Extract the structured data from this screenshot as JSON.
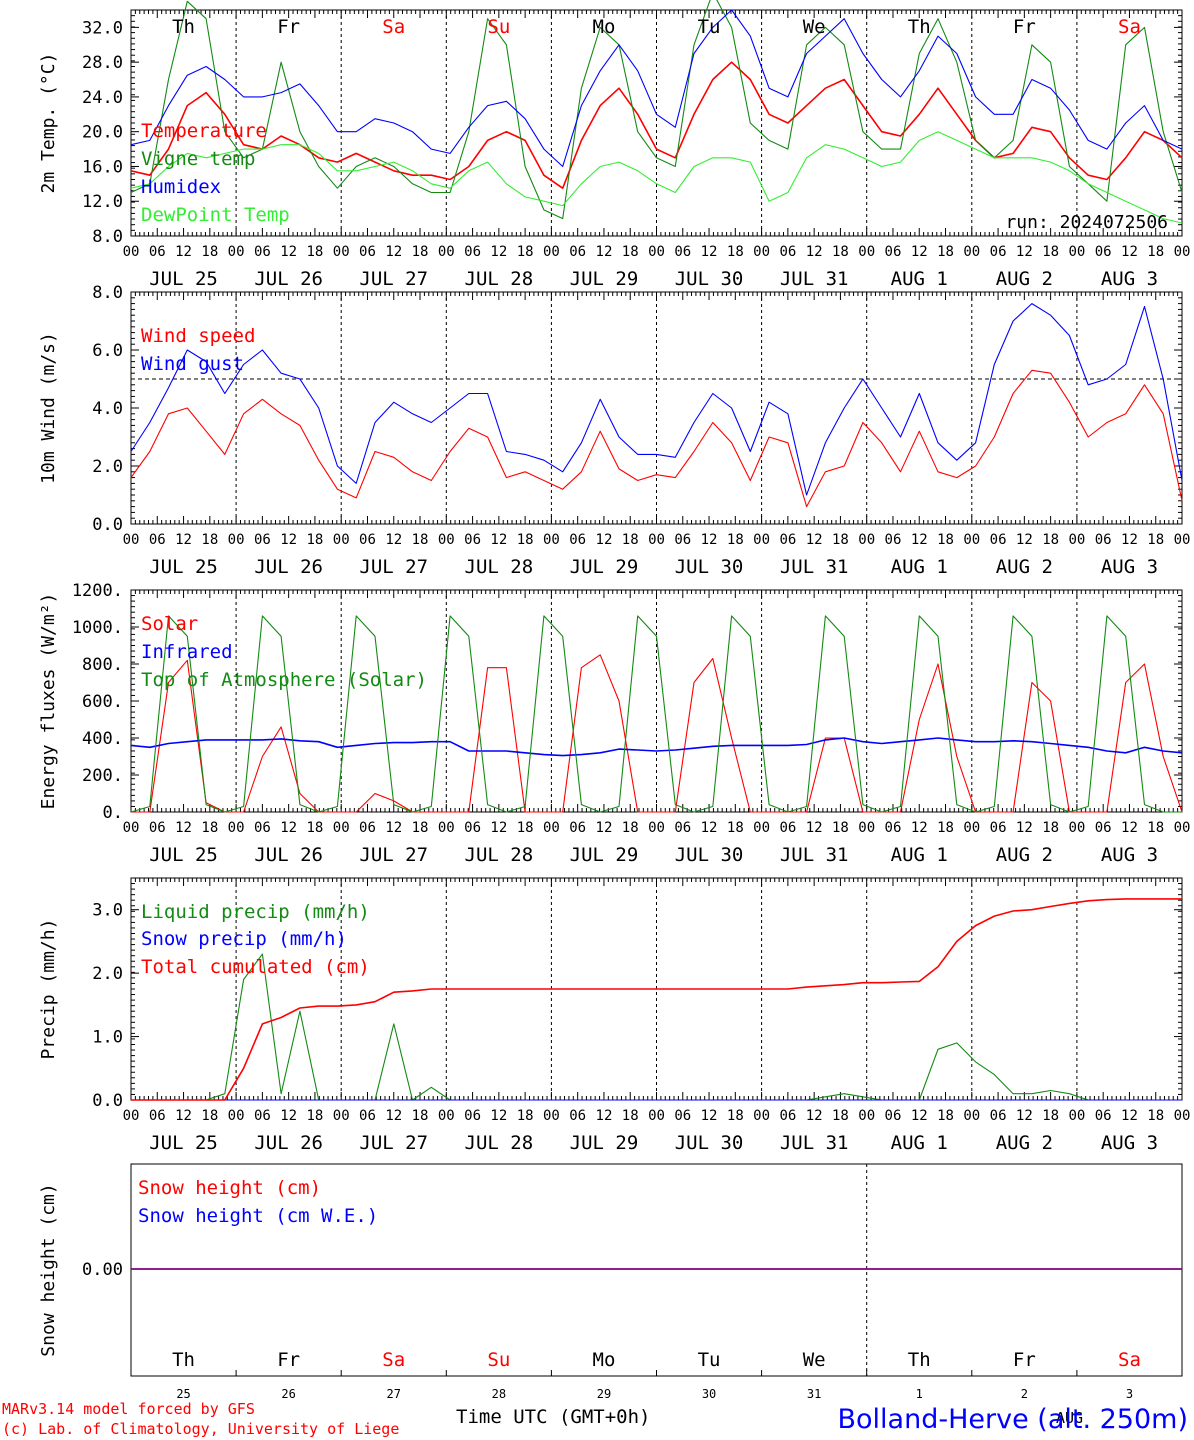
{
  "footer": {
    "model": "MARv3.14 model forced by GFS",
    "lab": "(c) Lab. of Climatology, University of Liege",
    "time_label": "Time UTC (GMT+0h)",
    "station": "Bolland-Herve (alt. 250m)",
    "month_overlay": "AUG"
  },
  "colors": {
    "red": "#ff0000",
    "green": "#138a13",
    "blue": "#0000ff",
    "lightgreen": "#33ee33",
    "purple": "#7f007f"
  },
  "days": {
    "weekday": [
      "Th",
      "Fr",
      "Sa",
      "Su",
      "Mo",
      "Tu",
      "We",
      "Th",
      "Fr",
      "Sa"
    ],
    "weekend": [
      false,
      false,
      true,
      true,
      false,
      false,
      false,
      false,
      false,
      true
    ],
    "date_labels": [
      "JUL 25",
      "JUL 26",
      "JUL 27",
      "JUL 28",
      "JUL 29",
      "JUL 30",
      "JUL 31",
      "AUG  1",
      "AUG  2",
      "AUG  3"
    ],
    "day_numbers": [
      "25",
      "26",
      "27",
      "28",
      "29",
      "30",
      "31",
      "1",
      "2",
      "3"
    ],
    "hour_ticks": [
      "00",
      "06",
      "12",
      "18"
    ],
    "final_tick": "00"
  },
  "chart_data": [
    {
      "type": "line",
      "ylabel": "2m Temp. (°C)",
      "ylim": [
        8,
        34
      ],
      "yticks": [
        "8.0",
        "12.0",
        "16.0",
        "20.0",
        "24.0",
        "28.0",
        "32.0"
      ],
      "annotation": "run: 2024072506",
      "x_hours_step": 6,
      "series": [
        {
          "name": "Temperature",
          "color": "red",
          "values": [
            15.5,
            15,
            18,
            23,
            24.5,
            22,
            18.5,
            18,
            19.5,
            18.5,
            17,
            16.5,
            17.5,
            16.5,
            15.5,
            15,
            15,
            14.5,
            16,
            19,
            20,
            19,
            15,
            13.5,
            19,
            23,
            25,
            22,
            18,
            17,
            22,
            26,
            28,
            26,
            22,
            21,
            23,
            25,
            26,
            23,
            20,
            19.5,
            22,
            25,
            22,
            19,
            17,
            17.5,
            20.5,
            20,
            17,
            15,
            14.5,
            17,
            20,
            19,
            17
          ]
        },
        {
          "name": "Vigne temp",
          "color": "green",
          "values": [
            13,
            14,
            26,
            35,
            33,
            20,
            17,
            18,
            28,
            20,
            16,
            13.5,
            16,
            17,
            16,
            14,
            13,
            13,
            20,
            33,
            30,
            16,
            11,
            10,
            25,
            32,
            30,
            20,
            17,
            16,
            30,
            36,
            32,
            21,
            19,
            18,
            30,
            32,
            30,
            20,
            18,
            18,
            29,
            33,
            28,
            19,
            17,
            19,
            30,
            28,
            16,
            14,
            12,
            30,
            32,
            20,
            13
          ]
        },
        {
          "name": "Humidex",
          "color": "blue",
          "values": [
            18.5,
            19,
            23,
            26.5,
            27.5,
            26,
            24,
            24,
            24.5,
            25.5,
            23,
            20,
            20,
            21.5,
            21,
            20,
            18,
            17.5,
            20.5,
            23,
            23.5,
            21.5,
            18,
            16,
            23,
            27,
            30,
            27,
            22,
            20.5,
            29,
            32,
            34,
            31,
            25,
            24,
            29,
            31,
            33,
            29,
            26,
            24,
            27,
            31,
            29,
            24,
            22,
            22,
            26,
            25,
            22.5,
            19,
            18,
            21,
            23,
            19,
            18
          ]
        },
        {
          "name": "DewPoint Temp",
          "color": "lightgreen",
          "values": [
            13.5,
            14,
            16,
            17.5,
            17,
            17.5,
            18,
            18,
            18.5,
            18.5,
            17.5,
            15.5,
            15.5,
            16,
            16.5,
            15.5,
            14,
            13.5,
            15.5,
            16.5,
            14,
            12.5,
            12,
            11.5,
            14,
            16,
            16.5,
            15.5,
            14,
            13,
            16,
            17,
            17,
            16.5,
            12,
            13,
            17,
            18.5,
            18,
            17,
            16,
            16.5,
            19,
            20,
            19,
            18,
            17,
            17,
            17,
            16.5,
            15.5,
            14,
            13,
            12,
            11,
            10,
            9.5
          ]
        }
      ]
    },
    {
      "type": "line",
      "ylabel": "10m Wind (m/s)",
      "ylim": [
        0,
        8
      ],
      "yticks": [
        "0.0",
        "2.0",
        "4.0",
        "6.0",
        "8.0"
      ],
      "reference_line": 5,
      "x_hours_step": 6,
      "series": [
        {
          "name": "Wind speed",
          "color": "red",
          "values": [
            1.6,
            2.5,
            3.8,
            4.0,
            3.2,
            2.4,
            3.8,
            4.3,
            3.8,
            3.4,
            2.2,
            1.2,
            0.9,
            2.5,
            2.3,
            1.8,
            1.5,
            2.5,
            3.3,
            3.0,
            1.6,
            1.8,
            1.5,
            1.2,
            1.8,
            3.2,
            1.9,
            1.5,
            1.7,
            1.6,
            2.5,
            3.5,
            2.8,
            1.5,
            3.0,
            2.8,
            0.6,
            1.8,
            2.0,
            3.5,
            2.8,
            1.8,
            3.2,
            1.8,
            1.6,
            2.0,
            3.0,
            4.5,
            5.3,
            5.2,
            4.2,
            3.0,
            3.5,
            3.8,
            4.8,
            3.8,
            0.8
          ]
        },
        {
          "name": "Wind gust",
          "color": "blue",
          "values": [
            2.5,
            3.5,
            4.7,
            6.0,
            5.6,
            4.5,
            5.5,
            6.0,
            5.2,
            5.0,
            4.0,
            2.0,
            1.4,
            3.5,
            4.2,
            3.8,
            3.5,
            4.0,
            4.5,
            4.5,
            2.5,
            2.4,
            2.2,
            1.8,
            2.8,
            4.3,
            3.0,
            2.4,
            2.4,
            2.3,
            3.5,
            4.5,
            4.0,
            2.5,
            4.2,
            3.8,
            1.0,
            2.8,
            4.0,
            5.0,
            4.0,
            3.0,
            4.5,
            2.8,
            2.2,
            2.8,
            5.5,
            7.0,
            7.6,
            7.2,
            6.5,
            4.8,
            5.0,
            5.5,
            7.5,
            5.0,
            1.5
          ]
        }
      ]
    },
    {
      "type": "line",
      "ylabel": "Energy fluxes (W/m²)",
      "ylim": [
        0,
        1200
      ],
      "yticks": [
        "0.",
        "200.",
        "400.",
        "600.",
        "800.",
        "1000.",
        "1200."
      ],
      "x_hours_step": 6,
      "series": [
        {
          "name": "Solar",
          "color": "red",
          "values": [
            0,
            0,
            700,
            820,
            50,
            0,
            0,
            300,
            460,
            100,
            0,
            0,
            0,
            100,
            60,
            0,
            0,
            0,
            0,
            780,
            780,
            0,
            0,
            0,
            780,
            850,
            600,
            0,
            0,
            0,
            700,
            830,
            400,
            0,
            0,
            0,
            0,
            400,
            400,
            0,
            0,
            0,
            500,
            800,
            300,
            0,
            0,
            0,
            700,
            600,
            0,
            0,
            0,
            700,
            800,
            300,
            0
          ]
        },
        {
          "name": "Infrared",
          "color": "blue",
          "values": [
            360,
            350,
            370,
            380,
            390,
            390,
            390,
            390,
            395,
            385,
            380,
            350,
            360,
            370,
            375,
            375,
            380,
            380,
            330,
            330,
            330,
            320,
            310,
            305,
            310,
            320,
            340,
            335,
            330,
            335,
            345,
            355,
            360,
            360,
            360,
            360,
            365,
            390,
            400,
            380,
            370,
            380,
            390,
            400,
            390,
            380,
            380,
            385,
            380,
            370,
            360,
            350,
            330,
            320,
            350,
            330,
            320
          ]
        },
        {
          "name": "Top of Atmosphere (Solar)",
          "color": "green",
          "values": [
            0,
            30,
            1060,
            950,
            40,
            0,
            30,
            1060,
            950,
            40,
            0,
            30,
            1060,
            950,
            40,
            0,
            30,
            1060,
            950,
            40,
            0,
            30,
            1060,
            950,
            40,
            0,
            30,
            1060,
            950,
            40,
            0,
            30,
            1060,
            950,
            40,
            0,
            30,
            1060,
            950,
            40,
            0,
            30,
            1060,
            950,
            40,
            0,
            30,
            1060,
            950,
            40,
            0,
            30,
            1060,
            950,
            40,
            0,
            0
          ]
        }
      ]
    },
    {
      "type": "line",
      "ylabel": "Precip (mm/h)",
      "ylim": [
        0,
        3.5
      ],
      "yticks": [
        "0.0",
        "1.0",
        "2.0",
        "3.0"
      ],
      "x_hours_step": 6,
      "series": [
        {
          "name": "Liquid precip (mm/h)",
          "color": "green",
          "values": [
            0,
            0,
            0,
            0,
            0,
            0.1,
            1.9,
            2.3,
            0.1,
            1.4,
            0,
            0,
            0,
            0,
            1.2,
            0,
            0.2,
            0,
            0,
            0,
            0,
            0,
            0,
            0,
            0,
            0,
            0,
            0,
            0,
            0,
            0,
            0,
            0,
            0,
            0,
            0,
            0,
            0.05,
            0.1,
            0.05,
            0,
            0,
            0,
            0.8,
            0.9,
            0.6,
            0.4,
            0.1,
            0.1,
            0.15,
            0.1,
            0,
            0,
            0,
            0,
            0,
            0
          ]
        },
        {
          "name": "Snow precip (mm/h)",
          "color": "blue",
          "values": [
            0,
            0,
            0,
            0,
            0,
            0,
            0,
            0,
            0,
            0,
            0,
            0,
            0,
            0,
            0,
            0,
            0,
            0,
            0,
            0,
            0,
            0,
            0,
            0,
            0,
            0,
            0,
            0,
            0,
            0,
            0,
            0,
            0,
            0,
            0,
            0,
            0,
            0,
            0,
            0,
            0,
            0,
            0,
            0,
            0,
            0,
            0,
            0,
            0,
            0,
            0,
            0,
            0,
            0,
            0,
            0,
            0
          ]
        },
        {
          "name": "Total cumulated (cm)",
          "color": "red",
          "values": [
            0,
            0,
            0,
            0,
            0,
            0,
            0.5,
            1.2,
            1.3,
            1.45,
            1.48,
            1.48,
            1.5,
            1.55,
            1.7,
            1.72,
            1.75,
            1.75,
            1.75,
            1.75,
            1.75,
            1.75,
            1.75,
            1.75,
            1.75,
            1.75,
            1.75,
            1.75,
            1.75,
            1.75,
            1.75,
            1.75,
            1.75,
            1.75,
            1.75,
            1.75,
            1.78,
            1.8,
            1.82,
            1.85,
            1.85,
            1.86,
            1.87,
            2.1,
            2.5,
            2.75,
            2.9,
            2.98,
            3.0,
            3.05,
            3.1,
            3.14,
            3.16,
            3.17,
            3.17,
            3.17,
            3.17
          ]
        }
      ]
    },
    {
      "type": "line",
      "ylabel": "Snow height (cm)",
      "yticks": [
        "0.00"
      ],
      "series": [
        {
          "name": "Snow height (cm)",
          "color": "red",
          "values": [
            0,
            0
          ]
        },
        {
          "name": "Snow height (cm W.E.)",
          "color": "blue",
          "values": [
            0,
            0
          ]
        }
      ]
    }
  ]
}
